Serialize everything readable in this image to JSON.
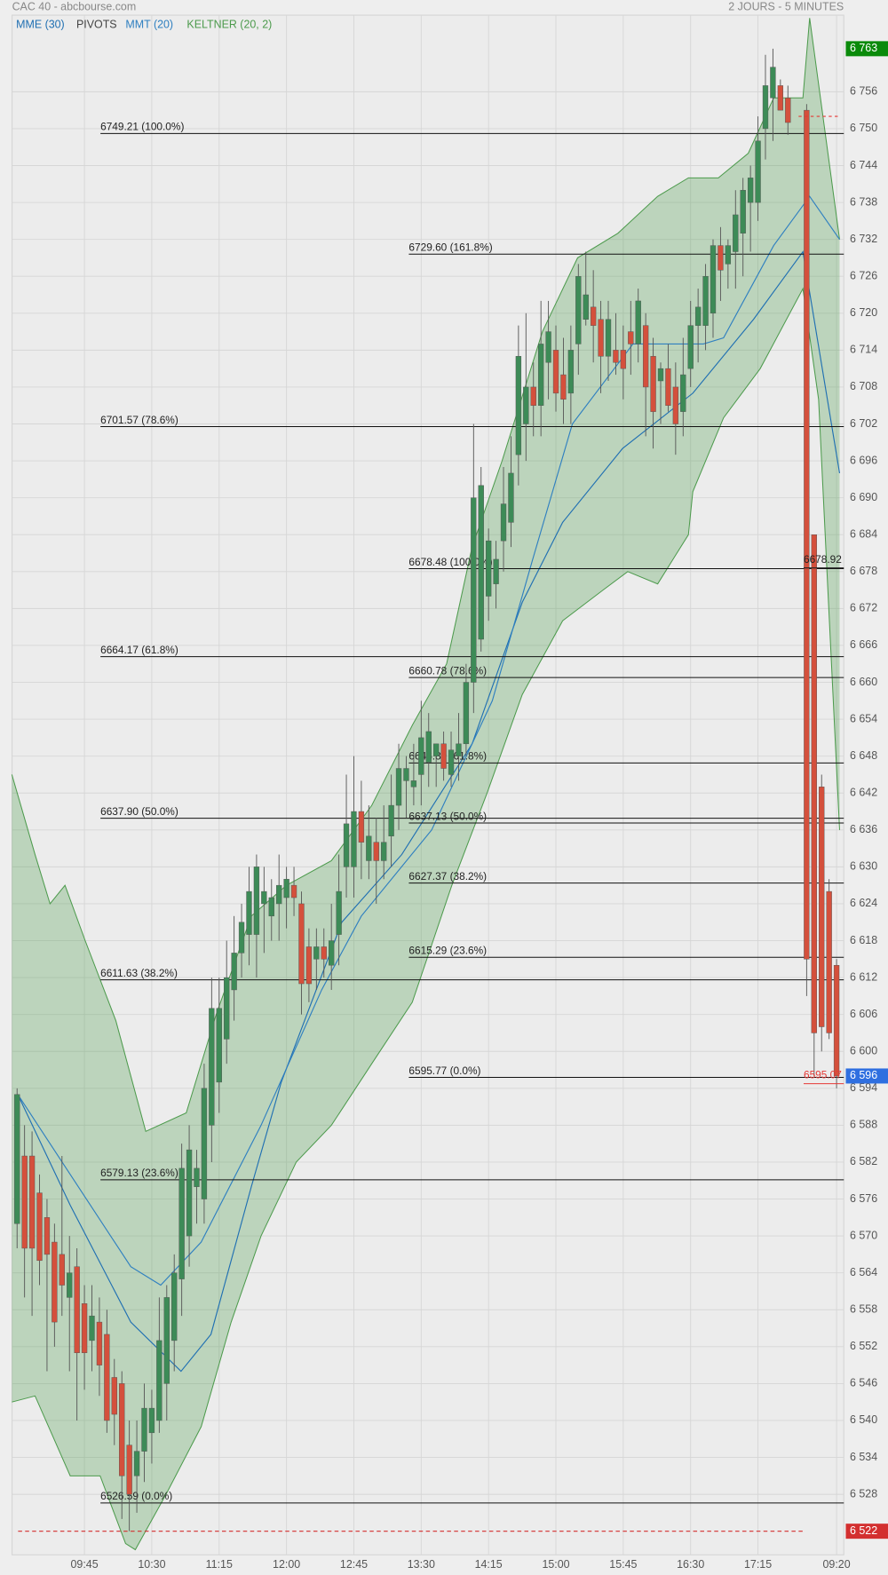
{
  "chart_data": {
    "type": "candlestick",
    "title": "CAC 40 - abcbourse.com",
    "subtitle": "2 JOURS - 5 MINUTES",
    "categories": [
      null,
      null,
      null,
      null,
      null,
      null,
      null,
      null,
      null,
      "09:45",
      null,
      null,
      null,
      null,
      null,
      null,
      null,
      null,
      "10:30",
      null,
      null,
      null,
      null,
      null,
      null,
      null,
      null,
      "11:15",
      null,
      null,
      null,
      null,
      null,
      null,
      null,
      null,
      "12:00",
      null,
      null,
      null,
      null,
      null,
      null,
      null,
      null,
      "12:45",
      null,
      null,
      null,
      null,
      null,
      null,
      null,
      null,
      "13:30",
      null,
      null,
      null,
      null,
      null,
      null,
      null,
      null,
      "14:15",
      null,
      null,
      null,
      null,
      null,
      null,
      null,
      null,
      "15:00",
      null,
      null,
      null,
      null,
      null,
      null,
      null,
      null,
      "15:45",
      null,
      null,
      null,
      null,
      null,
      null,
      null,
      null,
      "16:30",
      null,
      null,
      null,
      null,
      null,
      null,
      null,
      null,
      "17:15",
      null,
      null,
      null,
      null,
      null,
      null,
      null,
      null,
      "09:20"
    ],
    "open": [
      6572,
      6583,
      6583,
      6577,
      6573,
      6569,
      6567,
      6560,
      6565,
      6559,
      6553,
      6556,
      6554,
      6547,
      6546,
      6536,
      6531,
      6535,
      6538,
      6540,
      6546,
      6553,
      6563,
      6570,
      6578,
      6576,
      6588,
      6595,
      6602,
      6610,
      6616,
      6619,
      6619,
      6624,
      6622,
      6624,
      6625,
      6627,
      6624,
      6617,
      6615,
      6617,
      6614,
      6619,
      6630,
      6630,
      6639,
      6631,
      6634,
      6631,
      6635,
      6640,
      6644,
      6643,
      6645,
      6647,
      6648,
      6650,
      6645,
      6648,
      6650,
      6660,
      6667,
      6674,
      6676,
      6683,
      6686,
      6697,
      6702,
      6708,
      6705,
      6712,
      6714,
      6710,
      6707,
      6715,
      6719,
      6721,
      6719,
      6713,
      6714,
      6714,
      6717,
      6715,
      6718,
      6713,
      6709,
      6711,
      6708,
      6704,
      6711,
      6718,
      6718,
      6720,
      6731,
      6728,
      6730,
      6733,
      6738,
      6738,
      6750,
      6755,
      6757,
      6755,
      6753,
      6684,
      6643,
      6626,
      6614
    ],
    "high": [
      6594,
      6588,
      6587,
      6580,
      6576,
      6572,
      6583,
      6570,
      6568,
      6562,
      6562,
      6560,
      6558,
      6550,
      6548,
      6540,
      6540,
      6546,
      6545,
      6560,
      6562,
      6567,
      6585,
      6588,
      6584,
      6598,
      6612,
      6612,
      6618,
      6622,
      6624,
      6630,
      6632,
      6630,
      6628,
      6632,
      6630,
      6630,
      6626,
      6620,
      6620,
      6620,
      6624,
      6632,
      6645,
      6648,
      6644,
      6640,
      6638,
      6640,
      6645,
      6650,
      6648,
      6650,
      6657,
      6655,
      6650,
      6652,
      6652,
      6655,
      6663,
      6702,
      6695,
      6685,
      6683,
      6695,
      6700,
      6718,
      6720,
      6712,
      6722,
      6722,
      6718,
      6716,
      6718,
      6728,
      6730,
      6727,
      6722,
      6722,
      6720,
      6718,
      6722,
      6724,
      6720,
      6716,
      6712,
      6715,
      6712,
      6716,
      6722,
      6724,
      6728,
      6732,
      6734,
      6732,
      6740,
      6742,
      6744,
      6752,
      6762,
      6763,
      6758,
      6757,
      6754,
      6684,
      6645,
      6628,
      6615
    ],
    "low": [
      6568,
      6560,
      6557,
      6562,
      6548,
      6552,
      6557,
      6548,
      6540,
      6545,
      6548,
      6544,
      6538,
      6536,
      6524,
      6522,
      6525,
      6530,
      6533,
      6538,
      6540,
      6548,
      6557,
      6565,
      6572,
      6572,
      6582,
      6590,
      6598,
      6605,
      6612,
      6614,
      6612,
      6616,
      6618,
      6618,
      6620,
      6622,
      6606,
      6608,
      6610,
      6612,
      6610,
      6614,
      6625,
      6625,
      6628,
      6628,
      6624,
      6628,
      6630,
      6636,
      6638,
      6640,
      6640,
      6643,
      6643,
      6644,
      6643,
      6644,
      6648,
      6655,
      6665,
      6670,
      6672,
      6678,
      6682,
      6692,
      6696,
      6700,
      6700,
      6706,
      6704,
      6702,
      6702,
      6710,
      6718,
      6712,
      6707,
      6709,
      6710,
      6706,
      6710,
      6712,
      6700,
      6698,
      6702,
      6704,
      6697,
      6700,
      6708,
      6712,
      6714,
      6716,
      6722,
      6724,
      6724,
      6726,
      6730,
      6735,
      6745,
      6748,
      6753,
      6749,
      6609,
      6596,
      6600,
      6602,
      6594
    ],
    "close": [
      6593,
      6568,
      6568,
      6566,
      6567,
      6556,
      6562,
      6564,
      6551,
      6551,
      6557,
      6549,
      6540,
      6541,
      6531,
      6528,
      6535,
      6542,
      6542,
      6553,
      6560,
      6564,
      6581,
      6584,
      6581,
      6594,
      6607,
      6607,
      6612,
      6616,
      6621,
      6626,
      6630,
      6626,
      6625,
      6627,
      6628,
      6625,
      6611,
      6611,
      6617,
      6615,
      6618,
      6626,
      6637,
      6639,
      6634,
      6635,
      6631,
      6634,
      6640,
      6646,
      6646,
      6644,
      6651,
      6652,
      6650,
      6646,
      6649,
      6650,
      6660,
      6690,
      6692,
      6683,
      6680,
      6689,
      6694,
      6713,
      6708,
      6705,
      6715,
      6717,
      6707,
      6706,
      6714,
      6726,
      6723,
      6718,
      6713,
      6719,
      6712,
      6711,
      6715,
      6722,
      6708,
      6704,
      6711,
      6705,
      6702,
      6710,
      6718,
      6721,
      6726,
      6731,
      6727,
      6731,
      6736,
      6740,
      6742,
      6748,
      6757,
      6760,
      6753,
      6751,
      6615,
      6603,
      6604,
      6603,
      6596
    ],
    "up_color": "#3d8b57",
    "down_color": "#d4503c",
    "ylim": [
      6514.9,
      6770.9
    ],
    "yticks": [
      {
        "value": 6528,
        "label": "6 528"
      },
      {
        "value": 6534,
        "label": "6 534"
      },
      {
        "value": 6540,
        "label": "6 540"
      },
      {
        "value": 6546,
        "label": "6 546"
      },
      {
        "value": 6552,
        "label": "6 552"
      },
      {
        "value": 6558,
        "label": "6 558"
      },
      {
        "value": 6564,
        "label": "6 564"
      },
      {
        "value": 6570,
        "label": "6 570"
      },
      {
        "value": 6576,
        "label": "6 576"
      },
      {
        "value": 6582,
        "label": "6 582"
      },
      {
        "value": 6588,
        "label": "6 588"
      },
      {
        "value": 6594,
        "label": "6 594"
      },
      {
        "value": 6600,
        "label": "6 600"
      },
      {
        "value": 6606,
        "label": "6 606"
      },
      {
        "value": 6612,
        "label": "6 612"
      },
      {
        "value": 6618,
        "label": "6 618"
      },
      {
        "value": 6624,
        "label": "6 624"
      },
      {
        "value": 6630,
        "label": "6 630"
      },
      {
        "value": 6636,
        "label": "6 636"
      },
      {
        "value": 6642,
        "label": "6 642"
      },
      {
        "value": 6648,
        "label": "6 648"
      },
      {
        "value": 6654,
        "label": "6 654"
      },
      {
        "value": 6660,
        "label": "6 660"
      },
      {
        "value": 6666,
        "label": "6 666"
      },
      {
        "value": 6672,
        "label": "6 672"
      },
      {
        "value": 6678,
        "label": "6 678"
      },
      {
        "value": 6684,
        "label": "6 684"
      },
      {
        "value": 6690,
        "label": "6 690"
      },
      {
        "value": 6696,
        "label": "6 696"
      },
      {
        "value": 6702,
        "label": "6 702"
      },
      {
        "value": 6708,
        "label": "6 708"
      },
      {
        "value": 6714,
        "label": "6 714"
      },
      {
        "value": 6720,
        "label": "6 720"
      },
      {
        "value": 6726,
        "label": "6 726"
      },
      {
        "value": 6732,
        "label": "6 732"
      },
      {
        "value": 6738,
        "label": "6 738"
      },
      {
        "value": 6744,
        "label": "6 744"
      },
      {
        "value": 6750,
        "label": "6 750"
      },
      {
        "value": 6756,
        "label": "6 756"
      }
    ],
    "grid": true,
    "moving_averages": [
      {
        "name": "MME (30)",
        "color": "#1f6fb2",
        "x": [
          0.1,
          7.1,
          15.2,
          21.9,
          25.9,
          31.3,
          35.3,
          43.4,
          51.4,
          60.8,
          67.5,
          72.9,
          80.9,
          90.3,
          98.4,
          103.8,
          108.4
        ],
        "values": [
          6593,
          6575,
          6556,
          6548,
          6554,
          6578,
          6595,
          6621,
          6632,
          6650,
          6673,
          6686,
          6698,
          6707,
          6719,
          6730,
          6694
        ]
      },
      {
        "name": "MMT (20)",
        "color": "#2e7fc0",
        "x": [
          0.1,
          7.1,
          15.2,
          19.2,
          24.6,
          32.6,
          40.7,
          46,
          55.4,
          63.5,
          68.9,
          74.2,
          82.3,
          91.7,
          94.4,
          101.1,
          104.4,
          108.4
        ],
        "values": [
          6593,
          6580,
          6565,
          6562,
          6569,
          6588,
          6610,
          6622,
          6636,
          6657,
          6680,
          6702,
          6715,
          6715,
          6716,
          6731,
          6739,
          6732
        ]
      }
    ],
    "pivots": {
      "name": "PIVOTS",
      "color": "#444444"
    },
    "keltner": {
      "name": "KELTNER (20, 2)",
      "color": "#4c9a4c",
      "upper": {
        "x": [
          -0.7,
          2.4,
          4.4,
          6.4,
          9.1,
          13.2,
          17.2,
          22.6,
          26.6,
          31.3,
          36,
          42,
          47.4,
          52.8,
          57.4,
          60.8,
          64.8,
          70.2,
          74.9,
          80.3,
          85.6,
          89.7,
          93.7,
          97.7,
          101.1,
          103.8,
          104.4,
          108.4
        ],
        "values": [
          6645,
          6632,
          6624,
          6627,
          6618,
          6605,
          6587,
          6590,
          6606,
          6622,
          6627,
          6631,
          6640,
          6653,
          6663,
          6682,
          6696,
          6717,
          6729,
          6733,
          6739,
          6742,
          6742,
          6746,
          6755,
          6755,
          6768,
          6732
        ]
      },
      "lower": {
        "x": [
          -0.7,
          2.4,
          7.1,
          11.1,
          14.5,
          15.8,
          19.9,
          24.6,
          28.6,
          32.6,
          37.3,
          42,
          47.4,
          52.8,
          58.1,
          62.8,
          67.5,
          72.9,
          78.3,
          81.6,
          85.6,
          89.7,
          90.3,
          94.4,
          99.3,
          103.8,
          105.6,
          108.4
        ],
        "values": [
          6543,
          6544,
          6531,
          6531,
          6520,
          6519,
          6528,
          6539,
          6556,
          6570,
          6582,
          6588,
          6598,
          6608,
          6627,
          6642,
          6658,
          6670,
          6675,
          6678,
          6676,
          6684,
          6691,
          6703,
          6711,
          6724,
          6706,
          6636
        ]
      }
    },
    "fibonacci_left": [
      {
        "value": 6749.21,
        "label": "6749.21  (100.0%)"
      },
      {
        "value": 6701.57,
        "label": "6701.57  (78.6%)"
      },
      {
        "value": 6664.17,
        "label": "6664.17  (61.8%)"
      },
      {
        "value": 6637.9,
        "label": "6637.90  (50.0%)"
      },
      {
        "value": 6611.63,
        "label": "6611.63  (38.2%)"
      },
      {
        "value": 6579.13,
        "label": "6579.13  (23.6%)"
      },
      {
        "value": 6526.59,
        "label": "6526.59  (0.0%)"
      }
    ],
    "fibonacci_right": [
      {
        "value": 6729.6,
        "label": "6729.60  (161.8%)"
      },
      {
        "value": 6678.48,
        "label": "6678.48  (100.0%)"
      },
      {
        "value": 6660.78,
        "label": "6660.78  (78.6%)"
      },
      {
        "value": 6646.89,
        "label": "6646.89  (61.8%)"
      },
      {
        "value": 6637.13,
        "label": "6637.13  (50.0%)"
      },
      {
        "value": 6627.37,
        "label": "6627.37  (38.2%)"
      },
      {
        "value": 6615.29,
        "label": "6615.29  (23.6%)"
      },
      {
        "value": 6595.77,
        "label": "6595.77  (0.0%)"
      }
    ],
    "levels": [
      {
        "value": 6678.92,
        "color": "#222222"
      },
      {
        "value": 6595.07,
        "color": "#e53935"
      }
    ],
    "reference_line": {
      "value": 6752,
      "color": "#e53935"
    },
    "badges": [
      {
        "value": 6763,
        "label": "6 763",
        "color": "#0a8a0a"
      },
      {
        "value": 6596,
        "label": "6 596",
        "color": "#2f6fe0"
      },
      {
        "value": 6522,
        "label": "6 522",
        "color": "#d32f2f",
        "dashed_line": true
      }
    ]
  }
}
